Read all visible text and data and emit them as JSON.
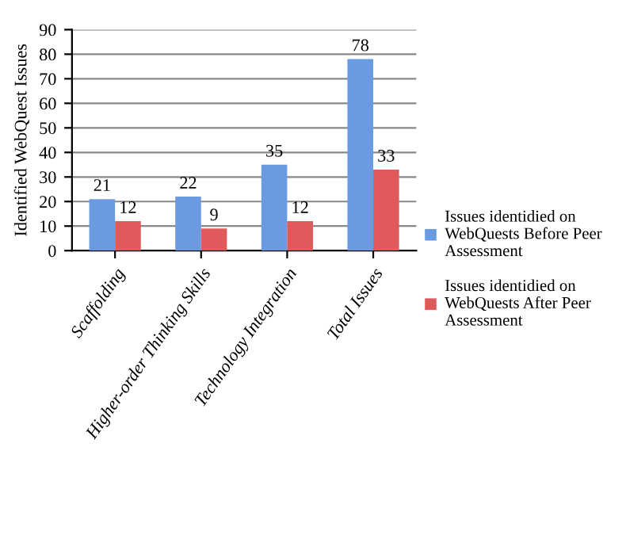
{
  "chart_data": {
    "type": "bar",
    "ylabel": "Identified WebQuest Issues",
    "categories": [
      "Scaffolding",
      "Higher-order Thinking Skills",
      "Technology Integration",
      "Total Issues"
    ],
    "series": [
      {
        "name": "Issues identidied on WebQuests Before Peer Assessment",
        "color": "#6a9be0",
        "values": [
          21,
          22,
          35,
          78
        ]
      },
      {
        "name": "Issues identidied on WebQuests After Peer Assessment",
        "color": "#e05a5c",
        "values": [
          12,
          9,
          12,
          33
        ]
      }
    ],
    "ylim": [
      0,
      90
    ],
    "yticks": [
      0,
      10,
      20,
      30,
      40,
      50,
      60,
      70,
      80,
      90
    ],
    "grid": "y",
    "legend": "right",
    "data_labels": true
  }
}
